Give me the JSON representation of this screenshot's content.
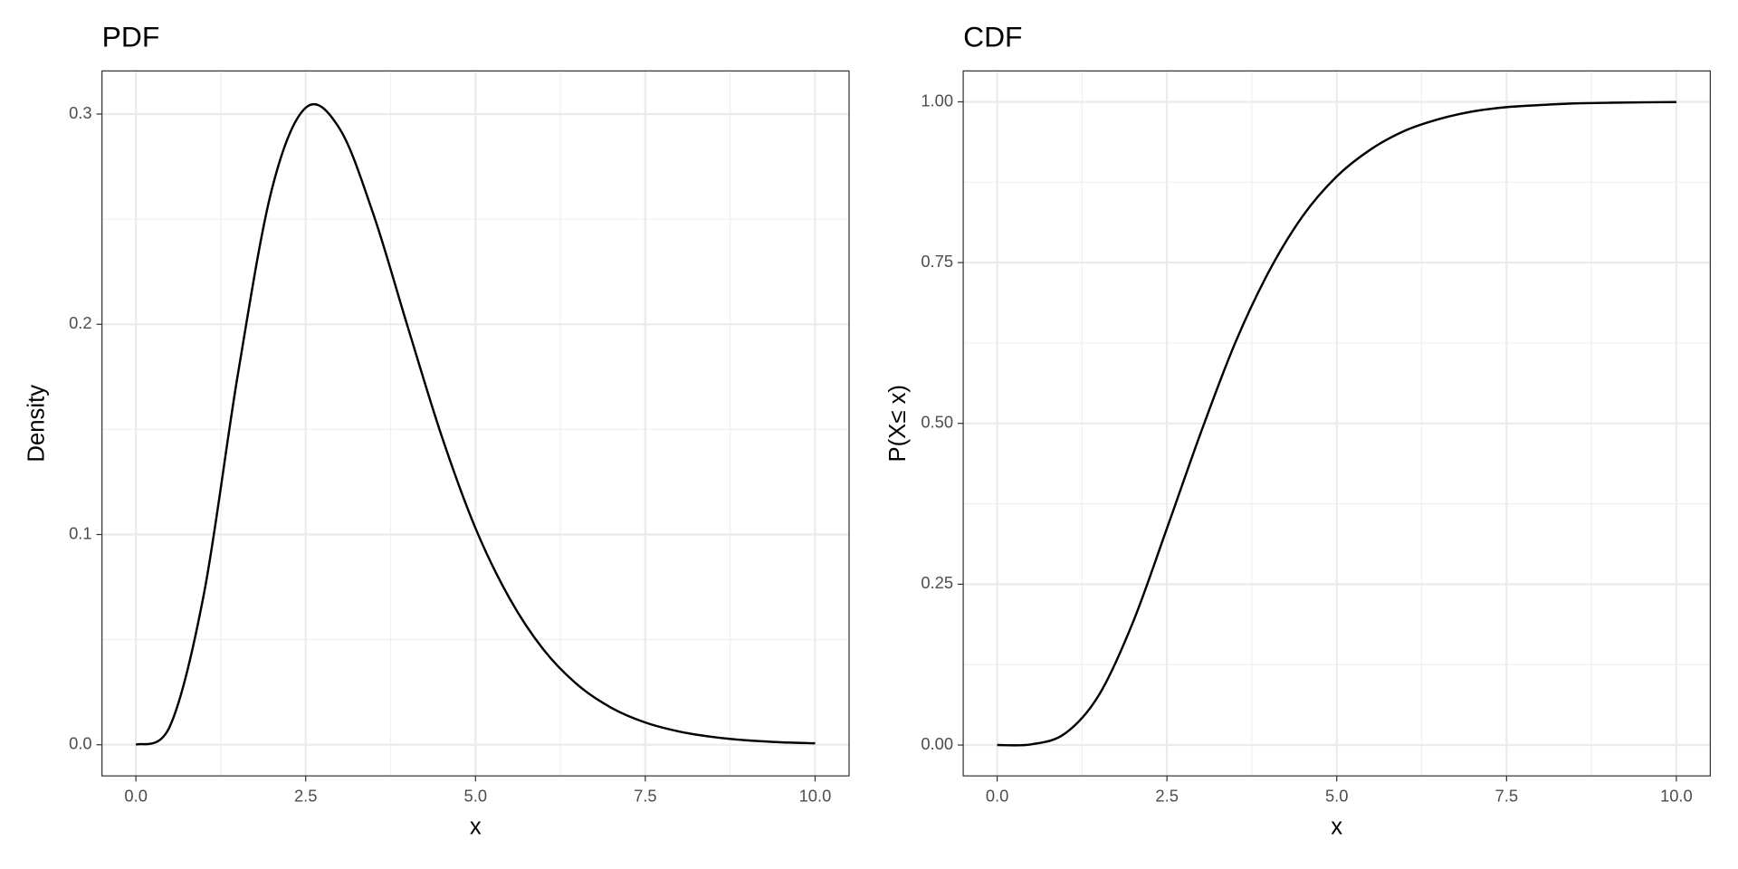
{
  "chart_data": [
    {
      "type": "line",
      "title": "PDF",
      "x_label": "x",
      "y_label": "Density",
      "x": [
        0,
        0.5,
        1,
        1.5,
        2,
        2.5,
        3,
        3.5,
        4,
        4.5,
        5,
        5.5,
        6,
        6.5,
        7,
        7.5,
        8,
        8.5,
        9,
        9.5,
        10
      ],
      "series": [
        {
          "color": "#000000",
          "values": [
            0,
            0.0088,
            0.0716,
            0.176,
            0.264,
            0.303,
            0.293,
            0.252,
            0.199,
            0.147,
            0.103,
            0.0697,
            0.0453,
            0.0286,
            0.0176,
            0.0106,
            0.0063,
            0.0037,
            0.0021,
            0.0012,
            0.0007
          ]
        }
      ],
      "xlim": [
        -0.5,
        10.5
      ],
      "xticks": [
        {
          "value": 0,
          "label": "0.0"
        },
        {
          "value": 2.5,
          "label": "2.5"
        },
        {
          "value": 5,
          "label": "5.0"
        },
        {
          "value": 7.5,
          "label": "7.5"
        },
        {
          "value": 10,
          "label": "10.0"
        }
      ],
      "ylim": [
        -0.0148,
        0.3205
      ],
      "yticks": [
        {
          "value": 0,
          "label": "0.0"
        },
        0.1,
        0.2,
        0.3
      ],
      "grid": true,
      "minor_grid": true
    },
    {
      "type": "line",
      "title": "CDF",
      "x_label": "x",
      "y_label": "P(X≤ x)",
      "x": [
        0,
        0.5,
        1,
        1.5,
        2,
        2.5,
        3,
        3.5,
        4,
        4.5,
        5,
        5.5,
        6,
        6.5,
        7,
        7.5,
        8,
        8.5,
        9,
        9.5,
        10
      ],
      "series": [
        {
          "color": "#000000",
          "values": [
            0,
            0.001,
            0.018,
            0.078,
            0.191,
            0.337,
            0.486,
            0.624,
            0.736,
            0.8225,
            0.884,
            0.926,
            0.955,
            0.973,
            0.985,
            0.9917,
            0.995,
            0.9975,
            0.9985,
            0.9992,
            0.9996
          ]
        }
      ],
      "xlim": [
        -0.5,
        10.5
      ],
      "xticks": [
        {
          "value": 0,
          "label": "0.0"
        },
        {
          "value": 2.5,
          "label": "2.5"
        },
        {
          "value": 5,
          "label": "5.0"
        },
        {
          "value": 7.5,
          "label": "7.5"
        },
        {
          "value": 10,
          "label": "10.0"
        }
      ],
      "ylim": [
        -0.048,
        1.048
      ],
      "yticks": [
        {
          "value": 0,
          "label": "0.00"
        },
        0.25,
        {
          "value": 0.5,
          "label": "0.50"
        },
        {
          "value": 0.75,
          "label": "0.75"
        },
        {
          "value": 1,
          "label": "1.00"
        }
      ],
      "grid": true,
      "minor_grid": true
    }
  ]
}
